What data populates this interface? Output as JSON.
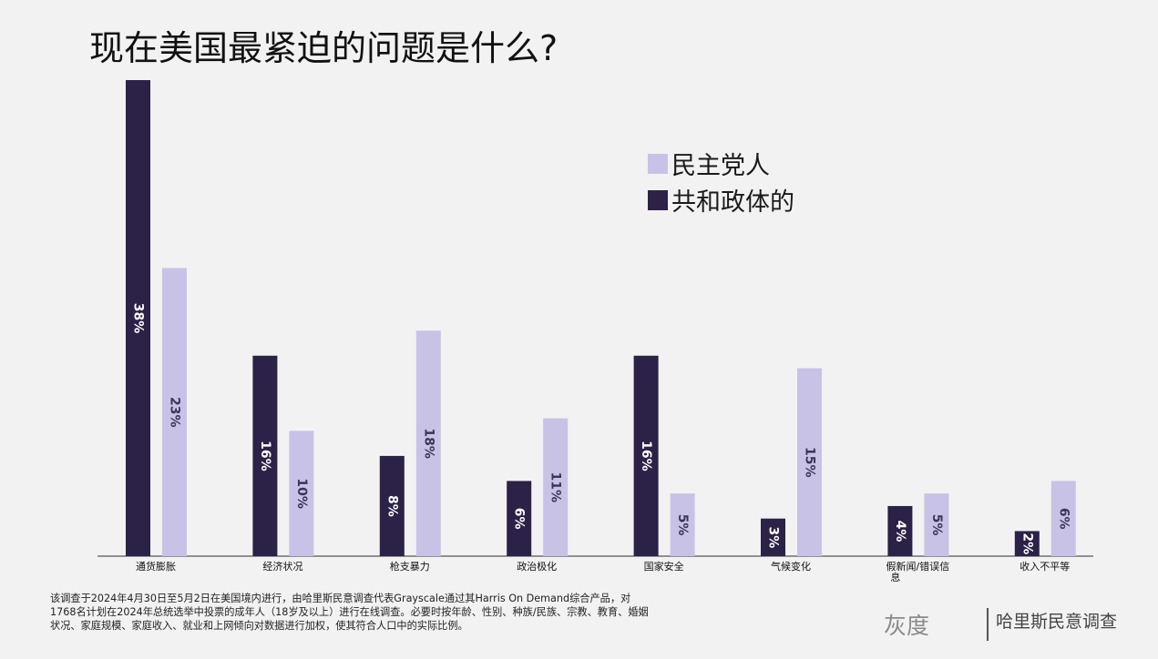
{
  "title": "现在美国最紧迫的问题是什么?",
  "legend": [
    {
      "label": "民主党人",
      "color": "#c8c2e6"
    },
    {
      "label": "共和政体的",
      "color": "#2c2146"
    }
  ],
  "chart_data": {
    "type": "bar",
    "categories": [
      "通货膨胀",
      "经济状况",
      "枪支暴力",
      "政治极化",
      "国家安全",
      "气候变化",
      "假新闻/错误信息",
      "收入不平等"
    ],
    "series": [
      {
        "name": "共和政体的",
        "color": "#2c2146",
        "label_color": "#ffffff",
        "values": [
          38,
          16,
          8,
          6,
          16,
          3,
          4,
          2
        ]
      },
      {
        "name": "民主党人",
        "color": "#c8c2e6",
        "label_color": "#3a3458",
        "values": [
          23,
          10,
          18,
          11,
          5,
          15,
          5,
          6
        ]
      }
    ],
    "value_suffix": "%",
    "ylim": [
      0,
      38
    ],
    "grid": false,
    "legend_position": "top-right"
  },
  "footnote": "该调查于2024年4月30日至5月2日在美国境内进行，由哈里斯民意调查代表Grayscale通过其Harris On Demand综合产品，对1768名计划在2024年总统选举中投票的成年人（18岁及以上）进行在线调查。必要时按年龄、性别、种族/民族、宗教、教育、婚姻状况、家庭规模、家庭收入、就业和上网倾向对数据进行加权，使其符合人口中的实际比例。",
  "brand": {
    "gray": "灰度",
    "harris": "哈里斯民意调查"
  }
}
